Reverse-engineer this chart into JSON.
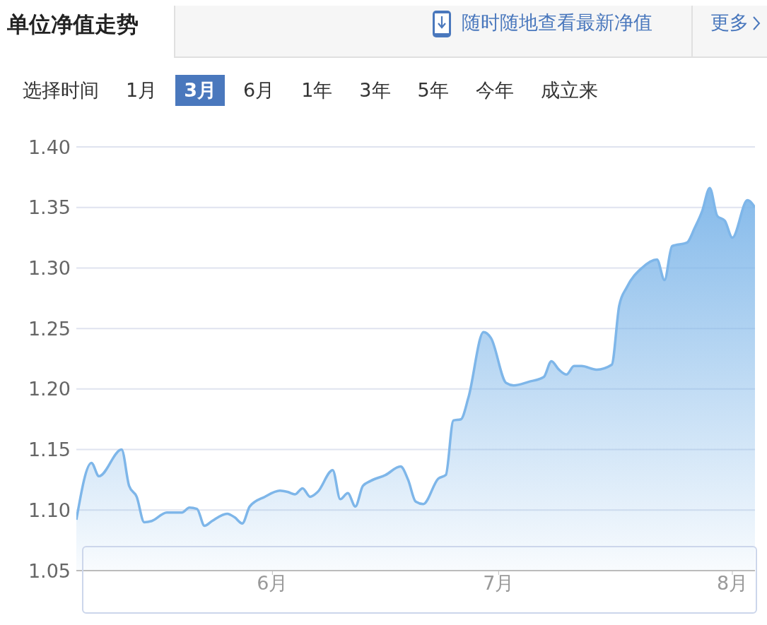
{
  "chart_data": {
    "type": "area",
    "title": "单位净值走势",
    "annotations": [
      "随时随地查看最新净值",
      "更多",
      "选择时间",
      "1月",
      "3月",
      "6月",
      "1年",
      "3年",
      "5年",
      "今年",
      "成立来"
    ],
    "x": [
      "--05-06",
      "--05-08",
      "--05-09",
      "--05-12",
      "--05-13",
      "--05-14",
      "--05-15",
      "--05-16",
      "--05-18",
      "--05-20",
      "--05-21",
      "--05-22",
      "--05-23",
      "--05-24",
      "--05-26",
      "--05-27",
      "--05-28",
      "--05-29",
      "--05-31",
      "--06-02",
      "--06-03",
      "--06-04",
      "--06-05",
      "--06-06",
      "--06-07",
      "--06-09",
      "--06-10",
      "--06-11",
      "--06-12",
      "--06-13",
      "--06-14",
      "--06-16",
      "--06-18",
      "--06-19",
      "--06-20",
      "--06-21",
      "--06-23",
      "--06-24",
      "--06-25",
      "--06-26",
      "--06-27",
      "--06-29",
      "--06-30",
      "--07-02",
      "--07-03",
      "--07-05",
      "--07-07",
      "--07-08",
      "--07-09",
      "--07-10",
      "--07-11",
      "--07-12",
      "--07-14",
      "--07-16",
      "--07-17",
      "--07-18",
      "--07-20",
      "--07-22",
      "--07-23",
      "--07-24",
      "--07-26",
      "--07-27",
      "--07-28",
      "--07-29",
      "--07-30",
      "--07-31",
      "--08-01",
      "--08-03",
      "--08-04"
    ],
    "series": [
      {
        "color": "#7eb6e9",
        "values": [
          1.092,
          1.139,
          1.128,
          1.15,
          1.12,
          1.111,
          1.09,
          1.091,
          1.098,
          1.098,
          1.102,
          1.101,
          1.087,
          1.091,
          1.097,
          1.094,
          1.089,
          1.103,
          1.111,
          1.116,
          1.115,
          1.113,
          1.118,
          1.111,
          1.115,
          1.133,
          1.109,
          1.114,
          1.103,
          1.12,
          1.124,
          1.129,
          1.136,
          1.125,
          1.107,
          1.105,
          1.126,
          1.129,
          1.174,
          1.175,
          1.193,
          1.247,
          1.242,
          1.205,
          1.203,
          1.206,
          1.21,
          1.223,
          1.216,
          1.212,
          1.219,
          1.219,
          1.216,
          1.22,
          1.269,
          1.284,
          1.3,
          1.307,
          1.29,
          1.318,
          1.321,
          1.333,
          1.347,
          1.366,
          1.343,
          1.339,
          1.325,
          1.356,
          1.35
        ]
      }
    ],
    "xlim": [
      "--05-06",
      "--08-04"
    ],
    "xticks": [
      {
        "value": "--06-01",
        "label": "6月"
      },
      {
        "value": "--07-01",
        "label": "7月"
      },
      {
        "value": "--08-01",
        "label": "8月"
      }
    ],
    "ylim": [
      1.05,
      1.4
    ],
    "yticks": [
      {
        "value": 1.05,
        "label": "1.05"
      },
      {
        "value": 1.1,
        "label": "1.10"
      },
      {
        "value": 1.15,
        "label": "1.15"
      },
      {
        "value": 1.2,
        "label": "1.20"
      },
      {
        "value": 1.25,
        "label": "1.25"
      },
      {
        "value": 1.3,
        "label": "1.30"
      },
      {
        "value": 1.35,
        "label": "1.35"
      },
      {
        "value": 1.4,
        "label": "1.40"
      }
    ],
    "grid": "y"
  }
}
